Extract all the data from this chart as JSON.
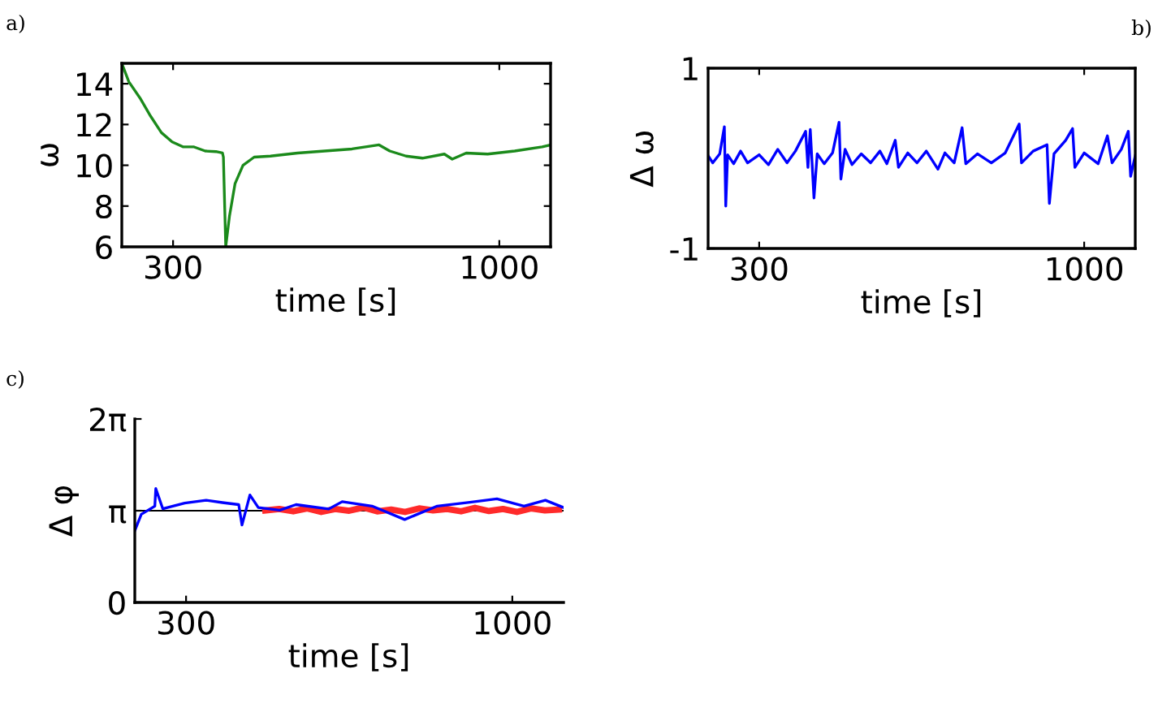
{
  "chart_data": [
    {
      "type": "line",
      "annotations": [
        "a)"
      ],
      "xlabel": "time [s]",
      "ylabel": "ω",
      "xlim": [
        190,
        1110
      ],
      "ylim": [
        6,
        15
      ],
      "xticks": [
        300,
        1000
      ],
      "yticks": [
        6,
        8,
        10,
        12,
        14
      ],
      "grid": false,
      "series": [
        {
          "color": "#1b8a1b",
          "x": [
            190,
            205,
            229,
            252,
            275,
            298,
            322,
            345,
            369,
            392,
            406,
            408,
            413,
            421,
            433,
            450,
            474,
            509,
            567,
            625,
            684,
            742,
            765,
            800,
            835,
            882,
            899,
            929,
            975,
            1033,
            1092,
            1110
          ],
          "values": [
            15,
            14.1,
            13.3,
            12.4,
            11.6,
            11.15,
            10.9,
            10.9,
            10.7,
            10.67,
            10.6,
            10.4,
            6.0,
            7.5,
            9.1,
            10.0,
            10.4,
            10.45,
            10.6,
            10.7,
            10.8,
            11.0,
            10.7,
            10.45,
            10.35,
            10.55,
            10.3,
            10.6,
            10.55,
            10.7,
            10.9,
            11.0
          ]
        }
      ]
    },
    {
      "type": "line",
      "annotations": [
        "b)"
      ],
      "xlabel": "time [s]",
      "ylabel": "Δ ω",
      "xlim": [
        190,
        1110
      ],
      "ylim": [
        -1,
        1
      ],
      "xticks": [
        300,
        1000
      ],
      "yticks": [
        -1,
        1
      ],
      "grid": false,
      "series": [
        {
          "color": "#0000ff",
          "x": [
            190,
            200,
            215,
            225,
            228,
            232,
            245,
            260,
            275,
            300,
            320,
            340,
            360,
            378,
            400,
            405,
            410,
            418,
            425,
            440,
            458,
            472,
            476,
            485,
            500,
            520,
            540,
            560,
            575,
            593,
            600,
            620,
            640,
            660,
            685,
            700,
            720,
            737,
            745,
            770,
            800,
            830,
            860,
            865,
            890,
            920,
            925,
            935,
            960,
            975,
            980,
            1000,
            1030,
            1050,
            1060,
            1080,
            1095,
            1100,
            1110
          ],
          "values": [
            0.03,
            -0.05,
            0.05,
            0.35,
            -0.53,
            0.04,
            -0.06,
            0.08,
            -0.05,
            0.04,
            -0.07,
            0.1,
            -0.05,
            0.08,
            0.3,
            -0.1,
            0.32,
            -0.44,
            0.05,
            -0.06,
            0.06,
            0.4,
            -0.23,
            0.1,
            -0.07,
            0.05,
            -0.05,
            0.08,
            -0.06,
            0.2,
            -0.1,
            0.06,
            -0.05,
            0.08,
            -0.12,
            0.06,
            -0.05,
            0.34,
            -0.06,
            0.05,
            -0.05,
            0.06,
            0.38,
            -0.05,
            0.08,
            0.15,
            -0.5,
            0.05,
            0.2,
            0.33,
            -0.1,
            0.06,
            -0.06,
            0.25,
            -0.05,
            0.1,
            0.3,
            -0.2,
            0.03
          ]
        }
      ]
    },
    {
      "type": "line",
      "annotations": [
        "c)"
      ],
      "xlabel": "time [s]",
      "ylabel": "Δ φ",
      "xlim": [
        190,
        1110
      ],
      "ylim": [
        0,
        6.2832
      ],
      "xticks": [
        300,
        1000
      ],
      "yticks": [
        0,
        {
          "value": 3.1416,
          "label": "π"
        },
        {
          "value": 6.2832,
          "label": "2π"
        }
      ],
      "grid": false,
      "ref_lines": [
        {
          "axis": "y",
          "value": 3.1416,
          "color": "#000000"
        }
      ],
      "series": [
        {
          "color": "#ff2a2a",
          "x": [
            470,
            500,
            530,
            560,
            590,
            620,
            650,
            680,
            710,
            740,
            770,
            800,
            830,
            860,
            890,
            920,
            950,
            980,
            1010,
            1040,
            1070,
            1100
          ],
          "values": [
            3.15,
            3.2,
            3.12,
            3.22,
            3.1,
            3.2,
            3.14,
            3.25,
            3.12,
            3.18,
            3.1,
            3.22,
            3.15,
            3.2,
            3.12,
            3.24,
            3.13,
            3.2,
            3.1,
            3.22,
            3.15,
            3.18
          ]
        },
        {
          "color": "#0000ff",
          "x": [
            190,
            204,
            233,
            235,
            250,
            297,
            343,
            378,
            413,
            420,
            437,
            455,
            501,
            536,
            606,
            635,
            699,
            769,
            839,
            909,
            967,
            1025,
            1071,
            1110
          ],
          "values": [
            2.46,
            3.02,
            3.3,
            3.9,
            3.21,
            3.4,
            3.5,
            3.42,
            3.35,
            2.65,
            3.68,
            3.25,
            3.16,
            3.35,
            3.2,
            3.45,
            3.3,
            2.84,
            3.3,
            3.43,
            3.55,
            3.3,
            3.5,
            3.25
          ]
        }
      ]
    }
  ]
}
